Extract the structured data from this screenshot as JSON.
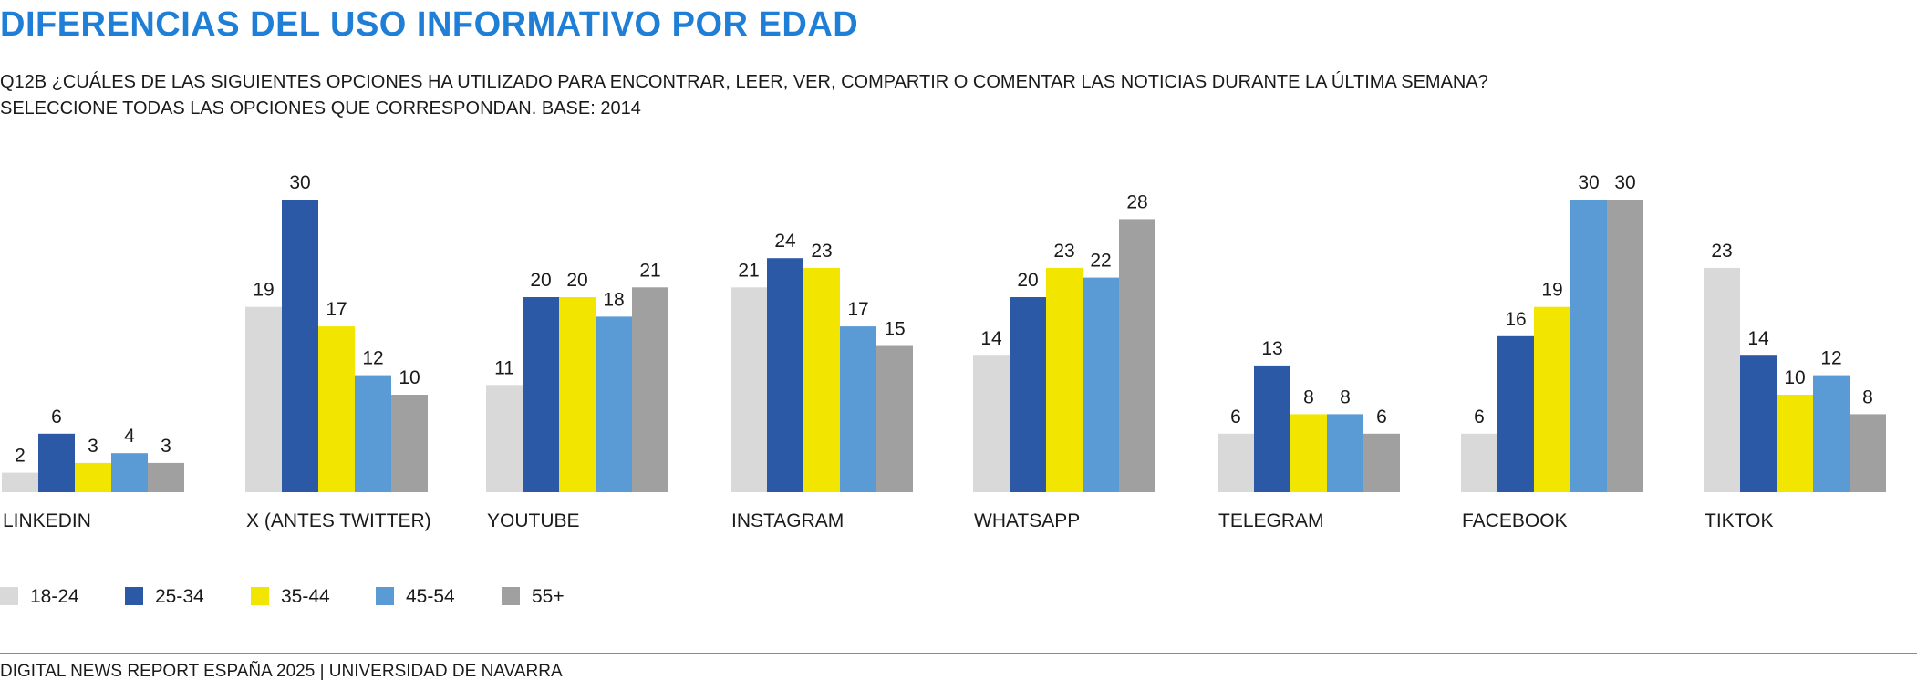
{
  "header": {
    "title": "DIFERENCIAS DEL USO INFORMATIVO POR EDAD",
    "subtitle_line1": "Q12B ¿CUÁLES DE LAS SIGUIENTES OPCIONES HA UTILIZADO PARA ENCONTRAR, LEER, VER, COMPARTIR O COMENTAR LAS NOTICIAS DURANTE LA ÚLTIMA SEMANA?",
    "subtitle_line2": "SELECCIONE TODAS LAS OPCIONES QUE CORRESPONDAN. BASE: 2014"
  },
  "footer": {
    "text": "DIGITAL NEWS REPORT ESPAÑA 2025 | UNIVERSIDAD DE NAVARRA"
  },
  "chart_data": {
    "type": "bar",
    "title": "DIFERENCIAS DEL USO INFORMATIVO POR EDAD",
    "xlabel": "",
    "ylabel": "",
    "grid": false,
    "legend_position": "bottom-left",
    "ylim": [
      0,
      30
    ],
    "categories": [
      "LINKEDIN",
      "X (ANTES TWITTER)",
      "YOUTUBE",
      "INSTAGRAM",
      "WHATSAPP",
      "TELEGRAM",
      "FACEBOOK",
      "TIKTOK"
    ],
    "series": [
      {
        "name": "18-24",
        "color": "#d9d9d9",
        "values": [
          2,
          19,
          11,
          21,
          14,
          6,
          6,
          23
        ]
      },
      {
        "name": "25-34",
        "color": "#2b59a5",
        "values": [
          6,
          30,
          20,
          24,
          20,
          13,
          16,
          14
        ]
      },
      {
        "name": "35-44",
        "color": "#f2e500",
        "values": [
          3,
          17,
          20,
          23,
          23,
          8,
          19,
          10
        ]
      },
      {
        "name": "45-54",
        "color": "#5b9bd5",
        "values": [
          4,
          12,
          18,
          17,
          22,
          8,
          30,
          12
        ]
      },
      {
        "name": "55+",
        "color": "#a0a0a0",
        "values": [
          3,
          10,
          21,
          15,
          28,
          6,
          30,
          8
        ]
      }
    ]
  }
}
